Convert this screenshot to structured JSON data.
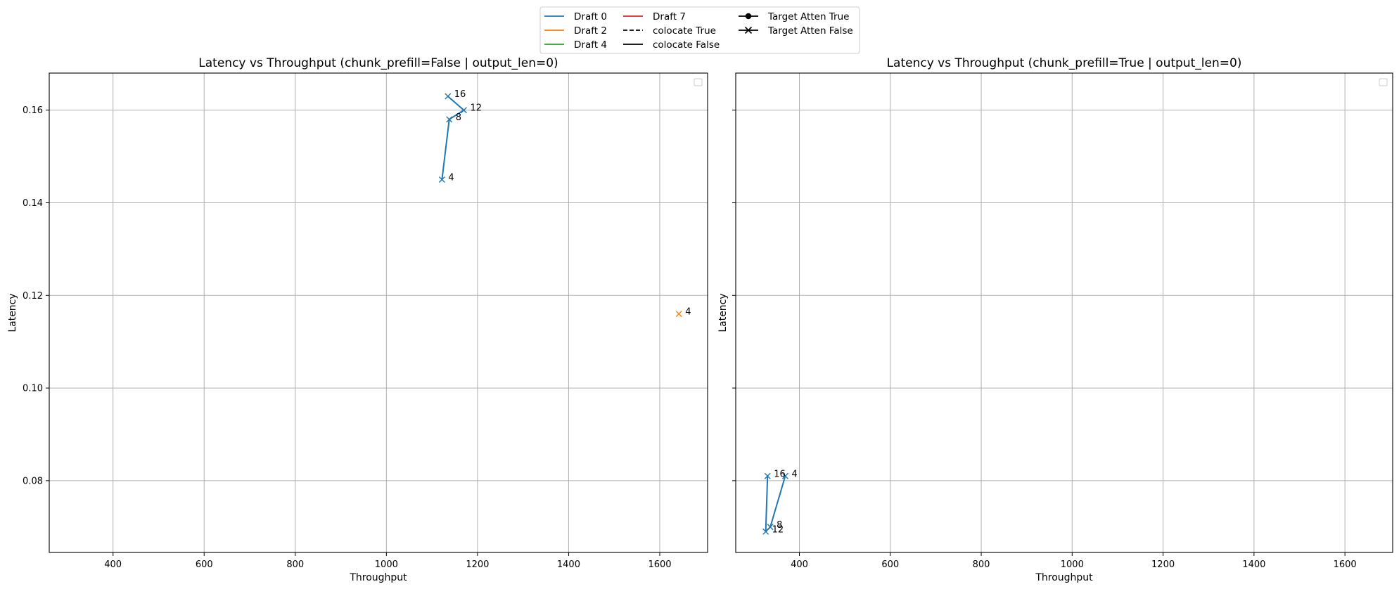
{
  "legend": {
    "entries": [
      {
        "label": "Draft 0",
        "color": "#1f77b4",
        "style": "solid",
        "marker": "none"
      },
      {
        "label": "Draft 2",
        "color": "#ff7f0e",
        "style": "solid",
        "marker": "none"
      },
      {
        "label": "Draft 4",
        "color": "#2ca02c",
        "style": "solid",
        "marker": "none"
      },
      {
        "label": "Draft 7",
        "color": "#d62728",
        "style": "solid",
        "marker": "none"
      },
      {
        "label": "colocate True",
        "color": "#000000",
        "style": "dashed",
        "marker": "none"
      },
      {
        "label": "colocate False",
        "color": "#000000",
        "style": "solid",
        "marker": "none"
      },
      {
        "label": "Target Atten True",
        "color": "#000000",
        "style": "solid",
        "marker": "circle"
      },
      {
        "label": "Target Atten False",
        "color": "#000000",
        "style": "solid",
        "marker": "x"
      }
    ],
    "placement": "top-center, 3 columns"
  },
  "chart_data": [
    {
      "type": "line",
      "title": "Latency vs Throughput (chunk_prefill=False | output_len=0)",
      "xlabel": "Throughput",
      "ylabel": "Latency",
      "xlim": [
        260,
        1705
      ],
      "ylim": [
        0.0645,
        0.168
      ],
      "xticks": [
        "400",
        "600",
        "800",
        "1000",
        "1200",
        "1400",
        "1600"
      ],
      "xtick_values": [
        400,
        600,
        800,
        1000,
        1200,
        1400,
        1600
      ],
      "yticks": [
        "0.08",
        "0.10",
        "0.12",
        "0.14",
        "0.16"
      ],
      "ytick_values": [
        0.08,
        0.1,
        0.12,
        0.14,
        0.16
      ],
      "grid": true,
      "series": [
        {
          "color": "#1f77b4",
          "marker": "x",
          "points": [
            {
              "x": 1122,
              "y": 0.145,
              "label": "4"
            },
            {
              "x": 1138,
              "y": 0.158,
              "label": "8"
            },
            {
              "x": 1170,
              "y": 0.16,
              "label": "12"
            },
            {
              "x": 1135,
              "y": 0.163,
              "label": "16"
            }
          ]
        },
        {
          "color": "#ff7f0e",
          "marker": "x",
          "points": [
            {
              "x": 1642,
              "y": 0.116,
              "label": "4"
            }
          ]
        }
      ]
    },
    {
      "type": "line",
      "title": "Latency vs Throughput (chunk_prefill=True | output_len=0)",
      "xlabel": "Throughput",
      "ylabel": "Latency",
      "xlim": [
        260,
        1705
      ],
      "ylim": [
        0.0645,
        0.168
      ],
      "xticks": [
        "400",
        "600",
        "800",
        "1000",
        "1200",
        "1400",
        "1600"
      ],
      "xtick_values": [
        400,
        600,
        800,
        1000,
        1200,
        1400,
        1600
      ],
      "yticks": [
        "0.08",
        "0.10",
        "0.12",
        "0.14",
        "0.16"
      ],
      "ytick_values": [
        0.08,
        0.1,
        0.12,
        0.14,
        0.16
      ],
      "grid": true,
      "series": [
        {
          "color": "#1f77b4",
          "marker": "x",
          "points": [
            {
              "x": 369,
              "y": 0.081,
              "label": "4"
            },
            {
              "x": 336,
              "y": 0.07,
              "label": "8"
            },
            {
              "x": 326,
              "y": 0.069,
              "label": "12"
            },
            {
              "x": 330,
              "y": 0.081,
              "label": "16"
            }
          ]
        }
      ]
    }
  ]
}
